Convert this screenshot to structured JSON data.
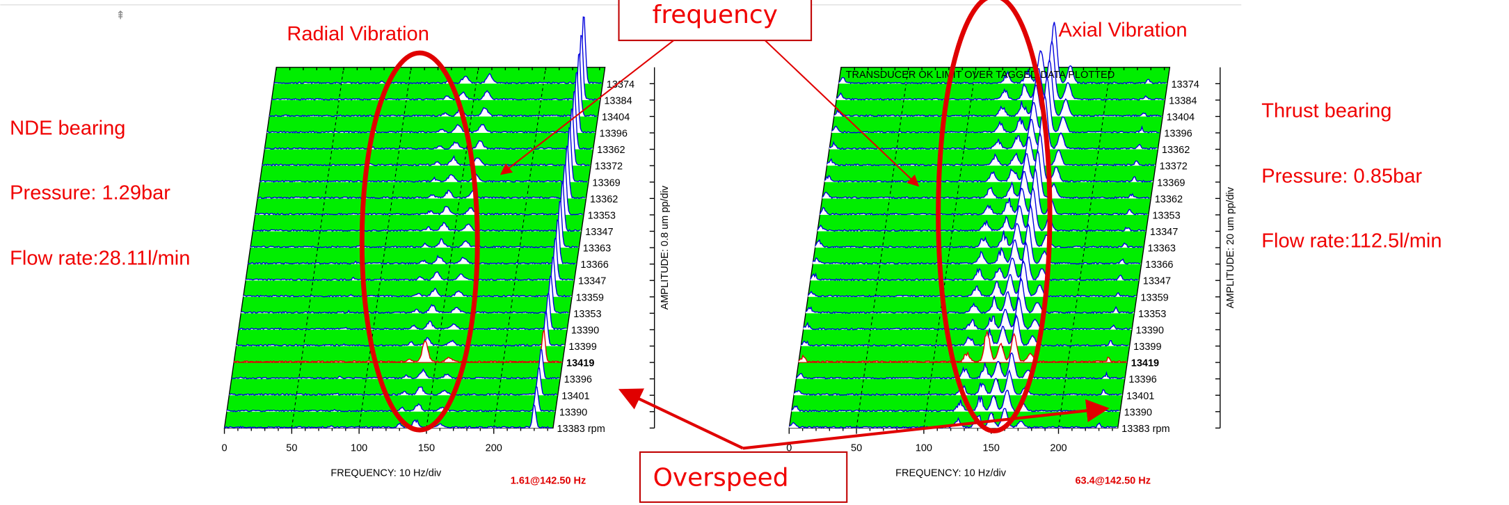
{
  "annotations": {
    "frequency_box": "frequency",
    "overspeed_box": "Overspeed"
  },
  "left_panel": {
    "title": "Radial Vibration",
    "notes": [
      "NDE bearing",
      "Pressure: 1.29bar",
      "Flow rate:28.11l/min"
    ],
    "x_ticks": [
      "0",
      "50",
      "100",
      "150",
      "200"
    ],
    "x_label": "FREQUENCY: 10 Hz/div",
    "y_label": "AMPLITUDE: 0.8 um pp/div",
    "rpm_labels": [
      "13374",
      "13384",
      "13404",
      "13396",
      "13362",
      "13372",
      "13369",
      "13362",
      "13353",
      "13347",
      "13363",
      "13366",
      "13347",
      "13359",
      "13353",
      "13390",
      "13399",
      "13419",
      "13396",
      "13401",
      "13390",
      "13383 rpm"
    ],
    "readout": "1.61@142.50 Hz"
  },
  "right_panel": {
    "title": "Axial Vibration",
    "notes": [
      "Thrust bearing",
      "Pressure: 0.85bar",
      "Flow rate:112.5l/min"
    ],
    "status": "TRANSDUCER OK LIMIT OVER TAGGED DATA PLOTTED",
    "x_ticks": [
      "0",
      "50",
      "100",
      "150",
      "200"
    ],
    "x_label": "FREQUENCY: 10 Hz/div",
    "y_label": "AMPLITUDE: 20 um pp/div",
    "rpm_labels": [
      "13374",
      "13384",
      "13404",
      "13396",
      "13362",
      "13372",
      "13369",
      "13362",
      "13353",
      "13347",
      "13363",
      "13366",
      "13347",
      "13359",
      "13353",
      "13390",
      "13399",
      "13419",
      "13396",
      "13401",
      "13390",
      "13383 rpm"
    ],
    "readout": "63.4@142.50 Hz"
  }
}
